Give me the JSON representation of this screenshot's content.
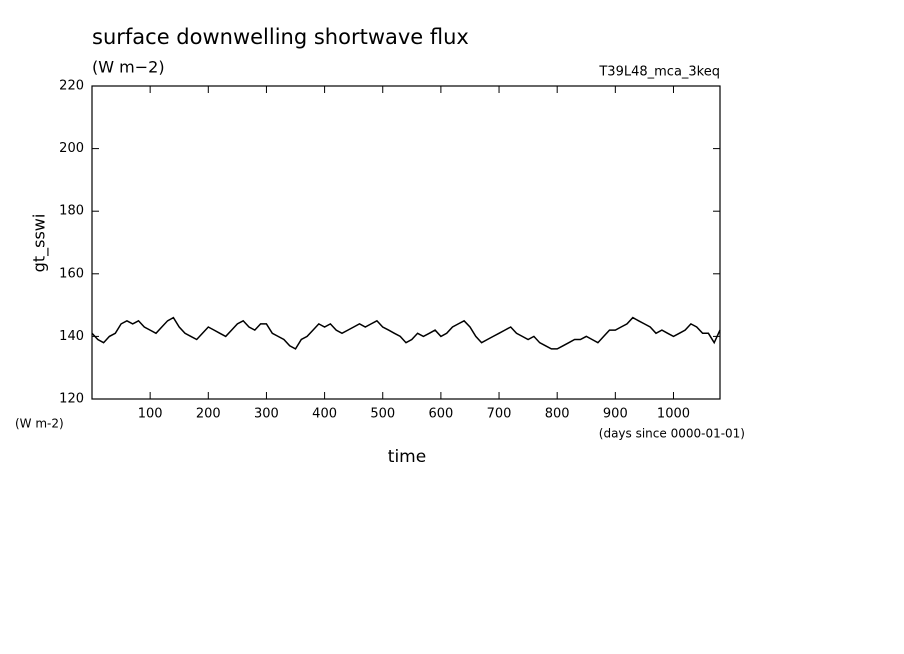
{
  "chart_data": {
    "type": "line",
    "title": "surface downwelling shortwave flux",
    "subtitle": "(W m−2)",
    "annotation": "T39L48_mca_3keq",
    "y_label": "gt_sswi",
    "y_unit": "(W m-2)",
    "x_label": "time",
    "x_unit": "(days since 0000-01-01)",
    "xlim": [
      0,
      1080
    ],
    "ylim": [
      120,
      220
    ],
    "xticks": [
      100,
      200,
      300,
      400,
      500,
      600,
      700,
      800,
      900,
      1000
    ],
    "yticks": [
      120,
      140,
      160,
      180,
      200,
      220
    ],
    "series": [
      {
        "name": "gt_sswi",
        "color": "#000000",
        "x": [
          0,
          10,
          20,
          30,
          40,
          50,
          60,
          70,
          80,
          90,
          100,
          110,
          120,
          130,
          140,
          150,
          160,
          170,
          180,
          190,
          200,
          210,
          220,
          230,
          240,
          250,
          260,
          270,
          280,
          290,
          300,
          310,
          320,
          330,
          340,
          350,
          360,
          370,
          380,
          390,
          400,
          410,
          420,
          430,
          440,
          450,
          460,
          470,
          480,
          490,
          500,
          510,
          520,
          530,
          540,
          550,
          560,
          570,
          580,
          590,
          600,
          610,
          620,
          630,
          640,
          650,
          660,
          670,
          680,
          690,
          700,
          710,
          720,
          730,
          740,
          750,
          760,
          770,
          780,
          790,
          800,
          810,
          820,
          830,
          840,
          850,
          860,
          870,
          880,
          890,
          900,
          910,
          920,
          930,
          940,
          950,
          960,
          970,
          980,
          990,
          1000,
          1010,
          1020,
          1030,
          1040,
          1050,
          1060,
          1070,
          1080
        ],
        "values": [
          141,
          139,
          138,
          140,
          141,
          144,
          145,
          144,
          145,
          143,
          142,
          141,
          143,
          145,
          146,
          143,
          141,
          140,
          139,
          141,
          143,
          142,
          141,
          140,
          142,
          144,
          145,
          143,
          142,
          144,
          144,
          141,
          140,
          139,
          137,
          136,
          139,
          140,
          142,
          144,
          143,
          144,
          142,
          141,
          142,
          143,
          144,
          143,
          144,
          145,
          143,
          142,
          141,
          140,
          138,
          139,
          141,
          140,
          141,
          142,
          140,
          141,
          143,
          144,
          145,
          143,
          140,
          138,
          139,
          140,
          141,
          142,
          143,
          141,
          140,
          139,
          140,
          138,
          137,
          136,
          136,
          137,
          138,
          139,
          139,
          140,
          139,
          138,
          140,
          142,
          142,
          143,
          144,
          146,
          145,
          144,
          143,
          141,
          142,
          141,
          140,
          141,
          142,
          144,
          143,
          141,
          141,
          138,
          142
        ]
      }
    ]
  }
}
